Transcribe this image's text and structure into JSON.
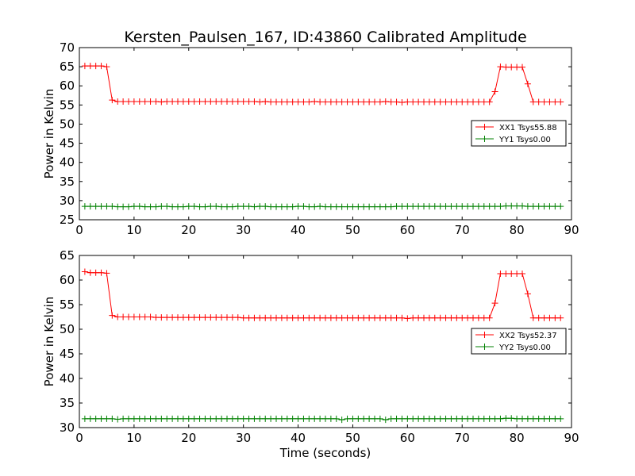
{
  "figure_title": "Kersten_Paulsen_167, ID:43860 Calibrated Amplitude",
  "colors": {
    "xx": "#ff0000",
    "yy": "#008000",
    "axis": "#000000",
    "background": "#ffffff"
  },
  "chart_data": [
    {
      "type": "line",
      "title": "Kersten_Paulsen_167, ID:43860 Calibrated Amplitude",
      "xlabel": "",
      "ylabel": "Power in Kelvin",
      "xlim": [
        0,
        90
      ],
      "ylim": [
        25,
        70
      ],
      "xticks": [
        "0",
        "10",
        "20",
        "30",
        "40",
        "50",
        "60",
        "70",
        "80",
        "90"
      ],
      "yticks": [
        "25",
        "30",
        "35",
        "40",
        "45",
        "50",
        "55",
        "60",
        "65",
        "70"
      ],
      "grid": false,
      "legend_position": "center-right",
      "x": [
        1,
        2,
        3,
        4,
        5,
        6,
        7,
        8,
        9,
        10,
        11,
        12,
        13,
        14,
        15,
        16,
        17,
        18,
        19,
        20,
        21,
        22,
        23,
        24,
        25,
        26,
        27,
        28,
        29,
        30,
        31,
        32,
        33,
        34,
        35,
        36,
        37,
        38,
        39,
        40,
        41,
        42,
        43,
        44,
        45,
        46,
        47,
        48,
        49,
        50,
        51,
        52,
        53,
        54,
        55,
        56,
        57,
        58,
        59,
        60,
        61,
        62,
        63,
        64,
        65,
        66,
        67,
        68,
        69,
        70,
        71,
        72,
        73,
        74,
        75,
        76,
        77,
        78,
        79,
        80,
        81,
        82,
        83,
        84,
        85,
        86,
        87,
        88
      ],
      "series": [
        {
          "name": "XX1 Tsys55.88",
          "color": "#ff0000",
          "values": [
            65.2,
            65.2,
            65.2,
            65.2,
            65.0,
            56.3,
            55.9,
            55.9,
            55.9,
            55.9,
            55.9,
            55.9,
            55.9,
            55.9,
            55.8,
            55.9,
            55.9,
            55.9,
            55.9,
            55.9,
            55.9,
            55.9,
            55.9,
            55.9,
            55.9,
            55.9,
            55.9,
            55.9,
            55.9,
            55.9,
            55.9,
            55.9,
            55.8,
            55.9,
            55.8,
            55.8,
            55.8,
            55.8,
            55.8,
            55.8,
            55.8,
            55.8,
            55.9,
            55.8,
            55.8,
            55.8,
            55.8,
            55.8,
            55.8,
            55.8,
            55.8,
            55.8,
            55.8,
            55.8,
            55.8,
            55.9,
            55.8,
            55.8,
            55.7,
            55.8,
            55.8,
            55.8,
            55.8,
            55.8,
            55.8,
            55.8,
            55.8,
            55.8,
            55.8,
            55.8,
            55.8,
            55.8,
            55.8,
            55.8,
            55.8,
            58.5,
            65.0,
            64.9,
            64.9,
            64.9,
            64.9,
            60.5,
            55.8,
            55.8,
            55.8,
            55.8,
            55.8,
            55.8
          ]
        },
        {
          "name": "YY1 Tsys0.00",
          "color": "#008000",
          "values": [
            28.5,
            28.5,
            28.5,
            28.5,
            28.5,
            28.5,
            28.4,
            28.4,
            28.4,
            28.5,
            28.5,
            28.4,
            28.4,
            28.4,
            28.5,
            28.5,
            28.4,
            28.4,
            28.4,
            28.5,
            28.5,
            28.4,
            28.4,
            28.5,
            28.5,
            28.4,
            28.4,
            28.4,
            28.5,
            28.5,
            28.5,
            28.4,
            28.5,
            28.5,
            28.4,
            28.4,
            28.4,
            28.4,
            28.4,
            28.5,
            28.5,
            28.4,
            28.4,
            28.5,
            28.4,
            28.4,
            28.4,
            28.4,
            28.4,
            28.4,
            28.4,
            28.4,
            28.4,
            28.4,
            28.4,
            28.4,
            28.4,
            28.5,
            28.5,
            28.5,
            28.5,
            28.5,
            28.5,
            28.5,
            28.5,
            28.5,
            28.5,
            28.5,
            28.5,
            28.5,
            28.5,
            28.5,
            28.5,
            28.5,
            28.5,
            28.5,
            28.5,
            28.6,
            28.6,
            28.6,
            28.6,
            28.5,
            28.5,
            28.5,
            28.5,
            28.5,
            28.5,
            28.5
          ]
        }
      ]
    },
    {
      "type": "line",
      "title": "",
      "xlabel": "Time (seconds)",
      "ylabel": "Power in Kelvin",
      "xlim": [
        0,
        90
      ],
      "ylim": [
        30,
        65
      ],
      "xticks": [
        "0",
        "10",
        "20",
        "30",
        "40",
        "50",
        "60",
        "70",
        "80",
        "90"
      ],
      "yticks": [
        "30",
        "35",
        "40",
        "45",
        "50",
        "55",
        "60",
        "65"
      ],
      "grid": false,
      "legend_position": "center-right",
      "x": [
        1,
        2,
        3,
        4,
        5,
        6,
        7,
        8,
        9,
        10,
        11,
        12,
        13,
        14,
        15,
        16,
        17,
        18,
        19,
        20,
        21,
        22,
        23,
        24,
        25,
        26,
        27,
        28,
        29,
        30,
        31,
        32,
        33,
        34,
        35,
        36,
        37,
        38,
        39,
        40,
        41,
        42,
        43,
        44,
        45,
        46,
        47,
        48,
        49,
        50,
        51,
        52,
        53,
        54,
        55,
        56,
        57,
        58,
        59,
        60,
        61,
        62,
        63,
        64,
        65,
        66,
        67,
        68,
        69,
        70,
        71,
        72,
        73,
        74,
        75,
        76,
        77,
        78,
        79,
        80,
        81,
        82,
        83,
        84,
        85,
        86,
        87,
        88
      ],
      "series": [
        {
          "name": "XX2 Tsys52.37",
          "color": "#ff0000",
          "values": [
            61.7,
            61.5,
            61.5,
            61.5,
            61.4,
            52.8,
            52.5,
            52.5,
            52.5,
            52.5,
            52.5,
            52.5,
            52.5,
            52.4,
            52.4,
            52.4,
            52.4,
            52.4,
            52.4,
            52.4,
            52.4,
            52.4,
            52.4,
            52.4,
            52.4,
            52.4,
            52.4,
            52.4,
            52.4,
            52.3,
            52.3,
            52.3,
            52.3,
            52.3,
            52.3,
            52.3,
            52.3,
            52.3,
            52.3,
            52.3,
            52.3,
            52.3,
            52.3,
            52.3,
            52.3,
            52.3,
            52.3,
            52.3,
            52.3,
            52.3,
            52.3,
            52.3,
            52.3,
            52.3,
            52.3,
            52.3,
            52.3,
            52.3,
            52.3,
            52.2,
            52.3,
            52.3,
            52.3,
            52.3,
            52.3,
            52.3,
            52.3,
            52.3,
            52.3,
            52.3,
            52.3,
            52.3,
            52.3,
            52.3,
            52.3,
            55.3,
            61.3,
            61.3,
            61.3,
            61.3,
            61.3,
            57.2,
            52.3,
            52.3,
            52.3,
            52.3,
            52.3,
            52.3
          ]
        },
        {
          "name": "YY2 Tsys0.00",
          "color": "#008000",
          "values": [
            31.8,
            31.8,
            31.8,
            31.8,
            31.8,
            31.8,
            31.7,
            31.8,
            31.8,
            31.8,
            31.8,
            31.8,
            31.8,
            31.8,
            31.8,
            31.8,
            31.8,
            31.8,
            31.8,
            31.8,
            31.8,
            31.8,
            31.8,
            31.8,
            31.8,
            31.8,
            31.8,
            31.8,
            31.8,
            31.8,
            31.8,
            31.8,
            31.8,
            31.8,
            31.8,
            31.8,
            31.8,
            31.8,
            31.8,
            31.8,
            31.8,
            31.8,
            31.8,
            31.8,
            31.8,
            31.8,
            31.8,
            31.6,
            31.8,
            31.8,
            31.8,
            31.8,
            31.8,
            31.8,
            31.8,
            31.6,
            31.8,
            31.8,
            31.8,
            31.8,
            31.8,
            31.8,
            31.8,
            31.8,
            31.8,
            31.8,
            31.8,
            31.8,
            31.8,
            31.8,
            31.8,
            31.8,
            31.8,
            31.8,
            31.8,
            31.8,
            31.8,
            31.9,
            31.9,
            31.8,
            31.8,
            31.8,
            31.8,
            31.8,
            31.8,
            31.8,
            31.8,
            31.8
          ]
        }
      ]
    }
  ]
}
